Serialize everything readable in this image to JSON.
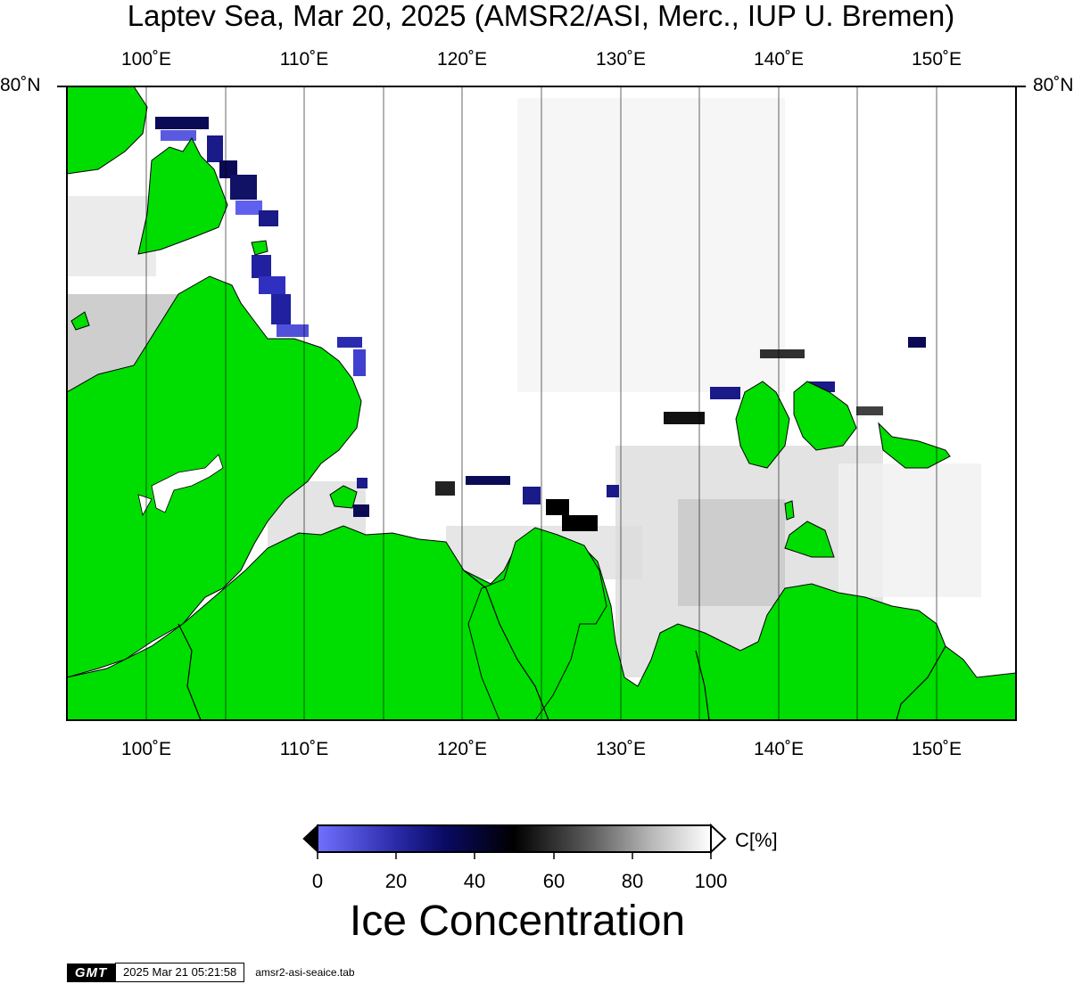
{
  "title": "Laptev Sea, Mar 20, 2025 (AMSR2/ASI, Merc., IUP U. Bremen)",
  "map": {
    "projection": "Mercator",
    "lon_range": [
      95,
      155
    ],
    "lon_ticks": [
      "100˚E",
      "110˚E",
      "120˚E",
      "130˚E",
      "140˚E",
      "150˚E"
    ],
    "lat_label_left": "80˚N",
    "lat_label_right": "80˚N",
    "land_color": "#00dd00",
    "ocean_color": "#ffffff"
  },
  "colorbar": {
    "tick_labels": [
      "0",
      "20",
      "40",
      "60",
      "80",
      "100"
    ],
    "unit": "C[%]",
    "title": "Ice Concentration",
    "colors": [
      "#7070ff",
      "#101088",
      "#000000",
      "#808080",
      "#ffffff"
    ]
  },
  "footer": {
    "logo": "GMT",
    "timestamp": "2025 Mar 21 05:21:58",
    "command": "amsr2-asi-seaice.tab"
  }
}
